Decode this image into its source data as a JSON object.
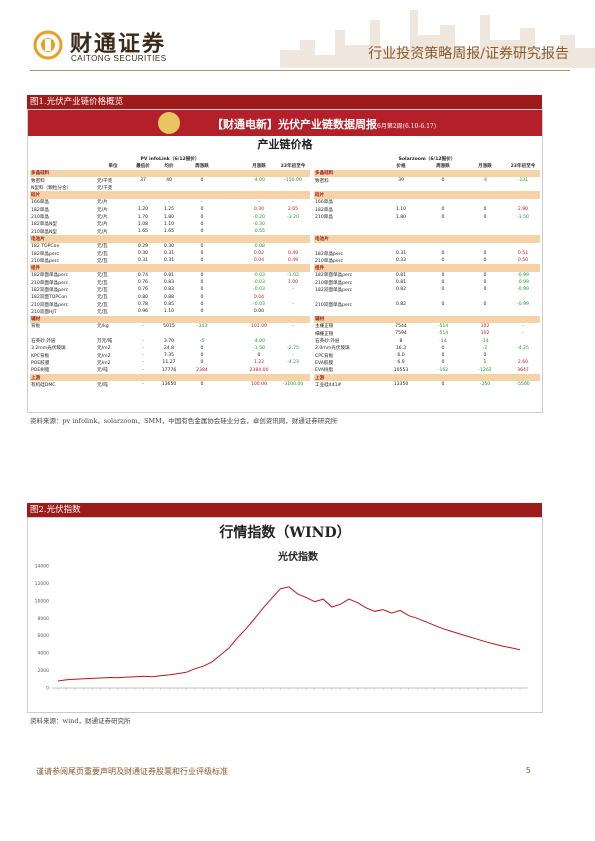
{
  "header": {
    "logo_cn": "财通证券",
    "logo_en": "CAITONG SECURITIES",
    "report_type": "行业投资策略周报/证券研究报告"
  },
  "figure1": {
    "title": "图1.光伏产业链价格概览",
    "banner_title": "【财通电新】光伏产业链数据周报",
    "banner_sub": "6月第2周(6.10-6.17)",
    "table_title": "产业链价格",
    "source_left": "PV infoLink（6/12报价）",
    "source_right": "Solarzoom（6/12报价）",
    "headers_left": [
      "",
      "单位",
      "最低价",
      "均价",
      "周涨跌",
      "",
      "月涨跌",
      "23年初至今"
    ],
    "headers_right": [
      "",
      "价格",
      "周涨跌",
      "月涨跌",
      "23年初至今"
    ],
    "rows": [
      {
        "type": "cat",
        "left": "多晶硅料",
        "right": "多晶硅料"
      },
      {
        "left": [
          "致密料",
          "元/千克",
          "37",
          "40",
          "0",
          "",
          "-4.00",
          "-150.00"
        ],
        "right": [
          "致密料",
          "39",
          "0",
          "-6",
          "-131"
        ]
      },
      {
        "left": [
          "N型料（颗粒分合）",
          "元/千克",
          "",
          "",
          "",
          "",
          "",
          ""
        ],
        "right": [
          "",
          "",
          "",
          "",
          ""
        ]
      },
      {
        "type": "cat",
        "left": "硅片",
        "right": "硅片"
      },
      {
        "left": [
          "166单晶",
          "元/片",
          "-",
          "-",
          "-",
          "",
          "-",
          "-"
        ],
        "right": [
          "166单晶",
          "",
          "",
          "",
          ""
        ]
      },
      {
        "left": [
          "182单晶",
          "元/片",
          "1.20",
          "1.25",
          "0",
          "",
          "0.30",
          "2.65"
        ],
        "right": [
          "182单晶",
          "1.10",
          "0",
          "0",
          "2.80"
        ]
      },
      {
        "left": [
          "210单晶",
          "元/片",
          "1.70",
          "1.80",
          "0",
          "",
          "-0.20",
          "-3.20"
        ],
        "right": [
          "210单晶",
          "1.80",
          "0",
          "0",
          "-3.50"
        ]
      },
      {
        "left": [
          "182单晶N型",
          "元/片",
          "1.08",
          "1.10",
          "0",
          "",
          "-0.30",
          ""
        ],
        "right": [
          "",
          "",
          "",
          "",
          ""
        ]
      },
      {
        "left": [
          "210单晶N型",
          "元/片",
          "1.65",
          "1.65",
          "0",
          "",
          "-0.55",
          ""
        ],
        "right": [
          "",
          "",
          "",
          "",
          ""
        ]
      },
      {
        "type": "cat",
        "left": "电池片",
        "right": "电池片"
      },
      {
        "left": [
          "182 TOPCon",
          "元/瓦",
          "0.29",
          "0.30",
          "0",
          "",
          "-0.08",
          ""
        ],
        "right": [
          "",
          "",
          "",
          "",
          ""
        ]
      },
      {
        "left": [
          "182单晶perc",
          "元/瓦",
          "0.30",
          "0.31",
          "0",
          "",
          "0.02",
          "0.49"
        ],
        "right": [
          "182单晶perc",
          "0.31",
          "0",
          "0",
          "0.51"
        ]
      },
      {
        "left": [
          "210单晶perc",
          "元/瓦",
          "0.31",
          "0.31",
          "0",
          "",
          "0.04",
          "0.49"
        ],
        "right": [
          "210单晶perc",
          "0.33",
          "0",
          "0",
          "0.50"
        ]
      },
      {
        "type": "cat",
        "left": "组件",
        "right": "组件"
      },
      {
        "left": [
          "182单面单晶perc",
          "元/瓦",
          "0.74",
          "0.81",
          "0",
          "",
          "-0.03",
          "-1.02"
        ],
        "right": [
          "182单面单晶perc",
          "0.81",
          "0",
          "0",
          "-0.99"
        ]
      },
      {
        "left": [
          "210单面单晶perc",
          "元/瓦",
          "0.76",
          "0.83",
          "0",
          "",
          "-0.03",
          "1.00"
        ],
        "right": [
          "210单面单晶perc",
          "0.81",
          "0",
          "0",
          "-0.99"
        ]
      },
      {
        "left": [
          "182双面单晶perc",
          "元/瓦",
          "0.76",
          "0.83",
          "0",
          "",
          "-0.03",
          "-"
        ],
        "right": [
          "182双面单晶perc",
          "0.82",
          "0",
          "0",
          "-0.99"
        ]
      },
      {
        "left": [
          "182双面TOPCon",
          "元/瓦",
          "0.80",
          "0.88",
          "0",
          "",
          "0.04",
          ""
        ],
        "right": [
          "",
          "",
          "",
          "",
          ""
        ]
      },
      {
        "left": [
          "210双面单晶perc",
          "元/瓦",
          "0.78",
          "0.85",
          "0",
          "",
          "-0.03",
          "-"
        ],
        "right": [
          "210双面单晶perc",
          "0.82",
          "0",
          "0",
          "-0.99"
        ]
      },
      {
        "left": [
          "210双面HJT",
          "元/瓦",
          "0.96",
          "1.10",
          "0",
          "",
          "0.00",
          ""
        ],
        "right": [
          "",
          "",
          "",
          "",
          ""
        ]
      },
      {
        "type": "cat",
        "left": "辅材",
        "right": "辅材"
      },
      {
        "left": [
          "背板",
          "元/kg",
          "-",
          "5015",
          "-343",
          "",
          "101.00",
          "-"
        ],
        "right": [
          "主栅正银",
          "7544",
          "-514",
          "102",
          "-"
        ]
      },
      {
        "left": [
          "",
          "",
          "",
          "",
          "",
          "",
          "",
          ""
        ],
        "right": [
          "细栅正银",
          "7594",
          "-514",
          "102",
          "-"
        ]
      },
      {
        "left": [
          "石英砂.外层",
          "万元/吨",
          "-",
          "3.70",
          "-5",
          "",
          "-4.00",
          ""
        ],
        "right": [
          "石英砂.外层",
          "8",
          "-14",
          "-14",
          ""
        ]
      },
      {
        "left": [
          "3.2mm光伏玻璃",
          "元/m2",
          "-",
          "24.8",
          "0",
          "",
          "-1.50",
          "-2.75"
        ],
        "right": [
          "2.0mm光伏玻璃",
          "16.3",
          "0",
          "-2",
          "-4.25"
        ]
      },
      {
        "left": [
          "KPC背板",
          "元/m2",
          "-",
          "7.35",
          "0",
          "",
          "0",
          "-"
        ],
        "right": [
          "CPC背板",
          "6.0",
          "0",
          "0",
          ""
        ]
      },
      {
        "left": [
          "POE胶膜",
          "元/m2",
          "-",
          "11.27",
          "0",
          "",
          "1.22",
          "-4.23"
        ],
        "right": [
          "EVA胶膜",
          "6.9",
          "0",
          "1",
          "2.60"
        ]
      },
      {
        "left": [
          "POE树脂",
          "元/吨",
          "-",
          "17776",
          "2384",
          "",
          "2384.00",
          ""
        ],
        "right": [
          "EVA树脂",
          "10553",
          "-162",
          "-1262",
          "3647"
        ]
      },
      {
        "type": "cat",
        "left": "上游",
        "right": "上游"
      },
      {
        "left": [
          "有机硅DMC",
          "元/吨",
          "-",
          "13650",
          "0",
          "",
          "100.00",
          "-3100.00"
        ],
        "right": [
          "工业硅441#",
          "13350",
          "0",
          "-250",
          "-5500"
        ]
      }
    ],
    "source_note": "资料来源：pv infolink，solarzoom，SMM，中国有色金属协会硅业分会，卓创资讯网，财通证券研究所"
  },
  "figure2": {
    "title": "图2.光伏指数",
    "chart_title": "行情指数（WIND）",
    "source_note": "资料来源：wind，财通证券研究所"
  },
  "chart_data": {
    "type": "line",
    "title": "行情指数（WIND）",
    "series": [
      {
        "name": "光伏指数",
        "color": "#c0141c",
        "values": [
          800,
          950,
          1000,
          1050,
          1100,
          1150,
          1200,
          1180,
          1250,
          1300,
          1350,
          1300,
          1400,
          1500,
          1650,
          1800,
          2200,
          2500,
          3000,
          3800,
          4600,
          5800,
          6800,
          8000,
          9200,
          10300,
          11400,
          11600,
          10800,
          10400,
          9900,
          10200,
          9300,
          9600,
          10200,
          9800,
          9200,
          8800,
          9000,
          8600,
          8900,
          8300,
          8000,
          7600,
          7200,
          6800,
          6500,
          6200,
          5900,
          5600,
          5300,
          5050,
          4800,
          4600,
          4400
        ]
      }
    ],
    "ylim": [
      0,
      14000
    ],
    "yticks": [
      "0",
      "2000",
      "4000",
      "6000",
      "8000",
      "10000",
      "12000",
      "14000"
    ]
  },
  "footer": {
    "disclaimer": "谨请参阅尾页重要声明及财通证券股票和行业评级标准",
    "page": "5"
  }
}
